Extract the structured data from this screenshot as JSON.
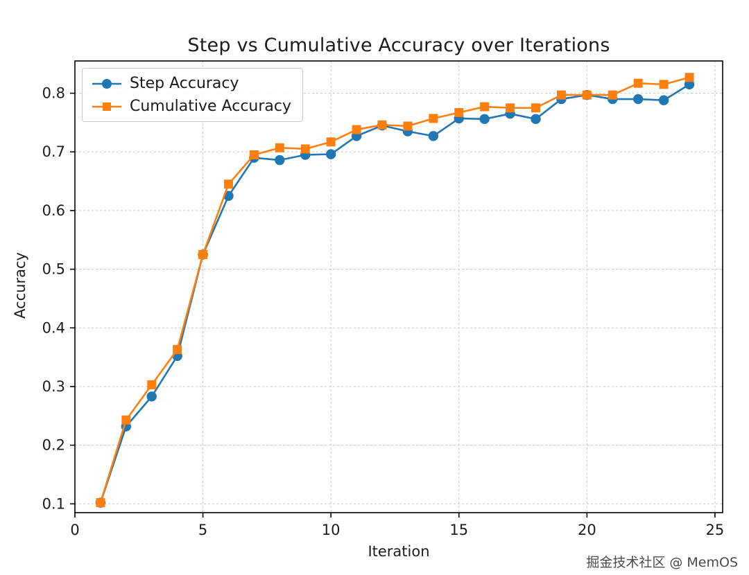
{
  "chart_data": {
    "type": "line",
    "title": "Step vs Cumulative Accuracy over Iterations",
    "xlabel": "Iteration",
    "ylabel": "Accuracy",
    "xlim": [
      0,
      25.3
    ],
    "ylim": [
      0.085,
      0.855
    ],
    "x_ticks": [
      0,
      5,
      10,
      15,
      20,
      25
    ],
    "y_ticks": [
      0.1,
      0.2,
      0.3,
      0.4,
      0.5,
      0.6,
      0.7,
      0.8
    ],
    "grid": true,
    "legend_position": "upper-left",
    "x": [
      1,
      2,
      3,
      4,
      5,
      6,
      7,
      8,
      9,
      10,
      11,
      12,
      13,
      14,
      15,
      16,
      17,
      18,
      19,
      20,
      21,
      22,
      23,
      24
    ],
    "series": [
      {
        "name": "Step Accuracy",
        "color": "#1f77b4",
        "marker": "circle",
        "values": [
          0.102,
          0.232,
          0.283,
          0.352,
          0.525,
          0.625,
          0.69,
          0.686,
          0.695,
          0.696,
          0.727,
          0.745,
          0.735,
          0.727,
          0.757,
          0.756,
          0.765,
          0.756,
          0.79,
          0.797,
          0.79,
          0.79,
          0.788,
          0.815
        ]
      },
      {
        "name": "Cumulative Accuracy",
        "color": "#ff7f0e",
        "marker": "square",
        "values": [
          0.102,
          0.243,
          0.303,
          0.363,
          0.525,
          0.645,
          0.695,
          0.707,
          0.705,
          0.717,
          0.738,
          0.746,
          0.744,
          0.757,
          0.767,
          0.777,
          0.775,
          0.775,
          0.797,
          0.797,
          0.797,
          0.817,
          0.815,
          0.827
        ]
      }
    ],
    "watermark": "掘金技术社区 @ MemOS",
    "colors": {
      "grid": "#c8c8c8",
      "axis": "#000000",
      "text": "#1c1c1c"
    }
  }
}
